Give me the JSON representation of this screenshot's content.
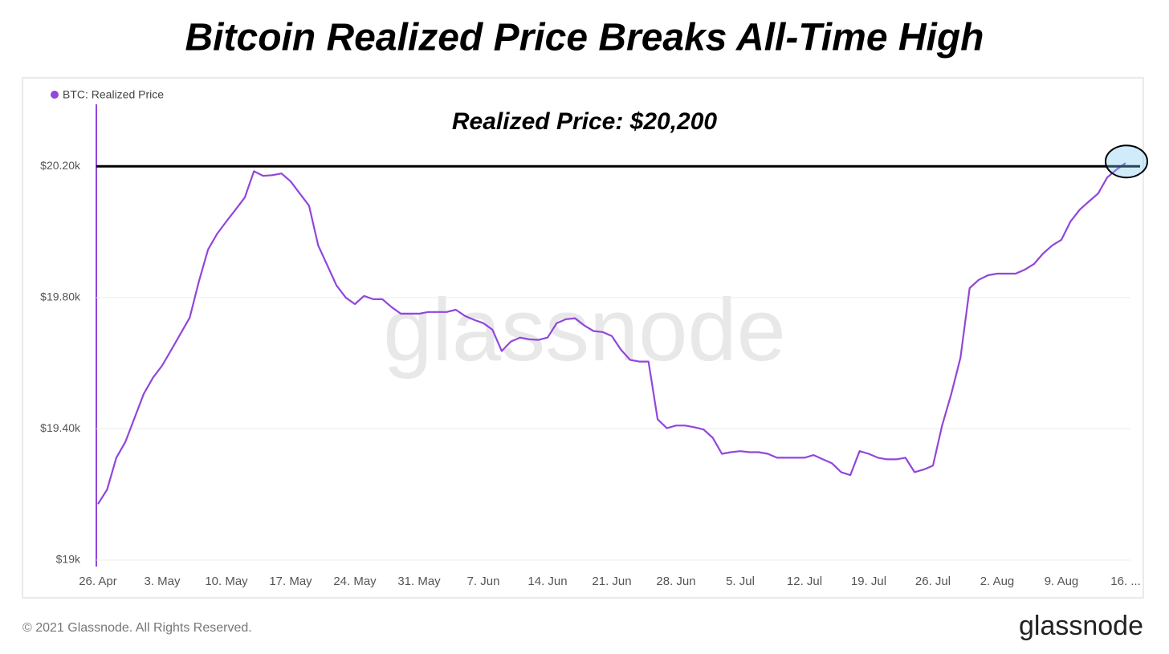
{
  "chart_data": {
    "type": "line",
    "title": "Bitcoin Realized Price Breaks All-Time High",
    "watermark": "glassnode",
    "footer": "© 2021 Glassnode. All Rights Reserved.",
    "logo": "glassnode",
    "reference_line": {
      "value": 20200,
      "label": "Realized Price: $20,200"
    },
    "categories": [
      "26. Apr",
      "27. Apr",
      "28. Apr",
      "29. Apr",
      "30. Apr",
      "1. May",
      "2. May",
      "3. May",
      "4. May",
      "5. May",
      "6. May",
      "7. May",
      "8. May",
      "9. May",
      "10. May",
      "11. May",
      "12. May",
      "13. May",
      "14. May",
      "15. May",
      "16. May",
      "17. May",
      "18. May",
      "19. May",
      "20. May",
      "21. May",
      "22. May",
      "23. May",
      "24. May",
      "25. May",
      "26. May",
      "27. May",
      "28. May",
      "29. May",
      "30. May",
      "31. May",
      "1. Jun",
      "2. Jun",
      "3. Jun",
      "4. Jun",
      "5. Jun",
      "6. Jun",
      "7. Jun",
      "8. Jun",
      "9. Jun",
      "10. Jun",
      "11. Jun",
      "12. Jun",
      "13. Jun",
      "14. Jun",
      "15. Jun",
      "16. Jun",
      "17. Jun",
      "18. Jun",
      "19. Jun",
      "20. Jun",
      "21. Jun",
      "22. Jun",
      "23. Jun",
      "24. Jun",
      "25. Jun",
      "26. Jun",
      "27. Jun",
      "28. Jun",
      "29. Jun",
      "30. Jun",
      "1. Jul",
      "2. Jul",
      "3. Jul",
      "4. Jul",
      "5. Jul",
      "6. Jul",
      "7. Jul",
      "8. Jul",
      "9. Jul",
      "10. Jul",
      "11. Jul",
      "12. Jul",
      "13. Jul",
      "14. Jul",
      "15. Jul",
      "16. Jul",
      "17. Jul",
      "18. Jul",
      "19. Jul",
      "20. Jul",
      "21. Jul",
      "22. Jul",
      "23. Jul",
      "24. Jul",
      "25. Jul",
      "26. Jul",
      "27. Jul",
      "28. Jul",
      "29. Jul",
      "30. Jul",
      "31. Jul",
      "1. Aug",
      "2. Aug",
      "3. Aug",
      "4. Aug",
      "5. Aug",
      "6. Aug",
      "7. Aug",
      "8. Aug",
      "9. Aug",
      "10. Aug",
      "11. Aug",
      "12. Aug",
      "13. Aug",
      "14. Aug",
      "15. Aug",
      "16. Aug"
    ],
    "series": [
      {
        "name": "BTC: Realized Price",
        "color": "#9146dc",
        "values": [
          19171,
          19215,
          19312,
          19361,
          19434,
          19507,
          19556,
          19593,
          19641,
          19690,
          19739,
          19849,
          19946,
          19995,
          20032,
          20068,
          20105,
          20185,
          20171,
          20173,
          20178,
          20154,
          20117,
          20080,
          19959,
          19898,
          19837,
          19800,
          19780,
          19805,
          19795,
          19795,
          19771,
          19751,
          19751,
          19751,
          19756,
          19756,
          19756,
          19763,
          19744,
          19732,
          19722,
          19702,
          19637,
          19666,
          19678,
          19673,
          19671,
          19678,
          19722,
          19734,
          19737,
          19715,
          19698,
          19695,
          19683,
          19641,
          19610,
          19605,
          19605,
          19429,
          19402,
          19410,
          19410,
          19405,
          19398,
          19373,
          19324,
          19329,
          19332,
          19329,
          19329,
          19324,
          19312,
          19312,
          19312,
          19312,
          19320,
          19307,
          19295,
          19268,
          19259,
          19332,
          19324,
          19312,
          19307,
          19307,
          19312,
          19268,
          19276,
          19288,
          19410,
          19507,
          19617,
          19829,
          19854,
          19868,
          19873,
          19873,
          19873,
          19885,
          19902,
          19934,
          19959,
          19976,
          20032,
          20068,
          20093,
          20117,
          20166,
          20190,
          20210
        ]
      }
    ],
    "ylim": [
      19000,
      20450
    ],
    "yticks": [
      {
        "value": 19000,
        "label": "$19k"
      },
      {
        "value": 19400,
        "label": "$19.40k"
      },
      {
        "value": 19800,
        "label": "$19.80k"
      },
      {
        "value": 20200,
        "label": "$20.20k"
      }
    ],
    "xticks": [
      "26. Apr",
      "3. May",
      "10. May",
      "17. May",
      "24. May",
      "31. May",
      "7. Jun",
      "14. Jun",
      "21. Jun",
      "28. Jun",
      "5. Jul",
      "12. Jul",
      "19. Jul",
      "26. Jul",
      "2. Aug",
      "9. Aug",
      {
        "value": "16. Aug",
        "label": "16. ..."
      }
    ],
    "grid": true,
    "legend": "top-left"
  }
}
